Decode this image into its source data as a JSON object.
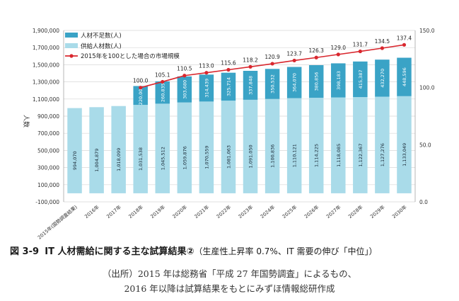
{
  "chart_data": {
    "type": "bar+line",
    "y_left_label": "人数",
    "y_left_range": [
      -100000,
      1900000
    ],
    "y_left_ticks": [
      "1,900,000",
      "1,700,000",
      "1,500,000",
      "1,300,000",
      "1,100,000",
      "900,000",
      "700,000",
      "500,000",
      "300,000",
      "100,000",
      "-100,000"
    ],
    "y_right_range": [
      0,
      150
    ],
    "y_right_ticks": [
      "150.0",
      "100.0",
      "50.0",
      "0.0"
    ],
    "categories": [
      "2015年(国勢調査結果)",
      "2016年",
      "2017年",
      "2018年",
      "2019年",
      "2020年",
      "2021年",
      "2022年",
      "2023年",
      "2024年",
      "2025年",
      "2026年",
      "2027年",
      "2028年",
      "2029年",
      "2030年"
    ],
    "supply": [
      994070,
      1004879,
      1018099,
      1031538,
      1045512,
      1059876,
      1070559,
      1081063,
      1091050,
      1100836,
      1110121,
      1114225,
      1118085,
      1122367,
      1127276,
      1133049
    ],
    "supply_labels": [
      "994,070",
      "1,004,879",
      "1,018,099",
      "1,031,538",
      "1,045,512",
      "1,059,876",
      "1,070,559",
      "1,081,063",
      "1,091,050",
      "1,100,836",
      "1,110,121",
      "1,114,225",
      "1,118,085",
      "1,122,367",
      "1,127,276",
      "1,133,049"
    ],
    "shortage": [
      null,
      null,
      null,
      220000,
      260835,
      303680,
      314439,
      325714,
      337848,
      350532,
      364070,
      380856,
      398183,
      415387,
      432270,
      448596
    ],
    "shortage_labels": [
      "",
      "",
      "",
      "220,000",
      "260,835",
      "303,680",
      "314,439",
      "325,714",
      "337,848",
      "350,532",
      "364,070",
      "380,856",
      "398,183",
      "415,387",
      "432,270",
      "448,596"
    ],
    "market_index": [
      null,
      null,
      null,
      100.0,
      105.1,
      110.5,
      113.0,
      115.6,
      118.2,
      120.9,
      123.7,
      126.3,
      129.0,
      131.7,
      134.5,
      137.4
    ],
    "market_labels": [
      "",
      "",
      "",
      "100.0",
      "105.1",
      "110.5",
      "113.0",
      "115.6",
      "118.2",
      "120.9",
      "123.7",
      "126.3",
      "129.0",
      "131.7",
      "134.5",
      "137.4"
    ],
    "legend": [
      "人材不足数(人)",
      "供給人材数(人)",
      "2015年を100とした場合の市場規模"
    ],
    "colors": {
      "shortage": "#3aa3c6",
      "supply": "#a9dbe9",
      "line": "#d9272e",
      "grid": "#d7d7d7"
    }
  },
  "caption": {
    "fig_no": "図 3-9",
    "title": "IT 人材需給に関する主な試算結果②",
    "subtitle": "（生産性上昇率 0.7%、IT 需要の伸び「中位」）"
  },
  "source": {
    "line1": "（出所）2015 年は総務省「平成 27 年国勢調査」によるもの、",
    "line2": "2016 年以降は試算結果をもとにみずほ情報総研作成"
  }
}
